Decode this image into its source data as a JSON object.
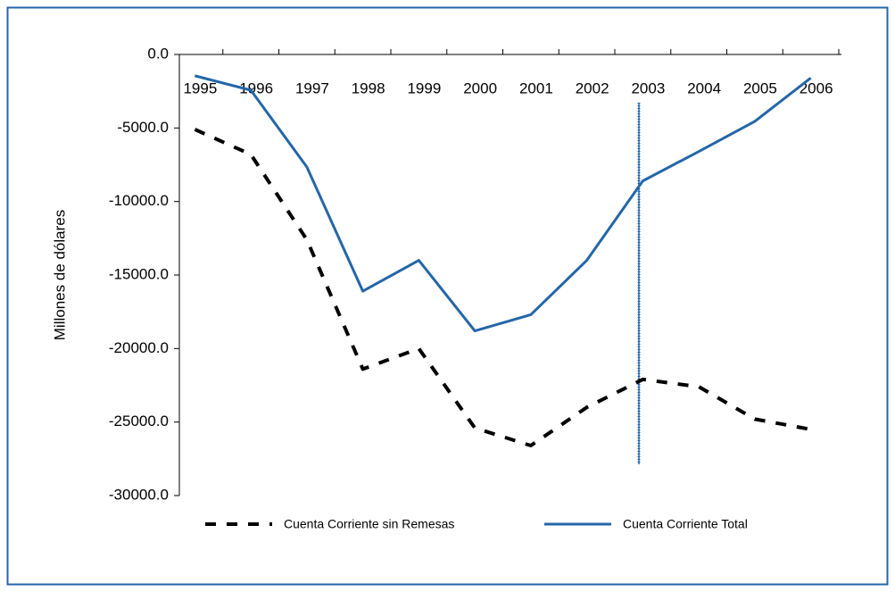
{
  "chart_data": {
    "type": "line",
    "y_label": "Millones de dólares",
    "categories": [
      "1995",
      "1996",
      "1997",
      "1998",
      "1999",
      "2000",
      "2001",
      "2002",
      "2003",
      "2004",
      "2005",
      "2006"
    ],
    "series": [
      {
        "name": "Cuenta Corriente sin Remesas",
        "color": "#000000",
        "dashed": true,
        "values": [
          -5100,
          -6800,
          -12600,
          -21400,
          -20000,
          -25400,
          -26600,
          -24000,
          -22100,
          -22600,
          -24800,
          -25500
        ]
      },
      {
        "name": "Cuenta Corriente Total",
        "color": "#2466a8",
        "dashed": false,
        "values": [
          -1450,
          -2430,
          -7650,
          -16100,
          -14000,
          -18800,
          -17700,
          -14000,
          -8600,
          -6600,
          -4550,
          -1600
        ]
      }
    ],
    "ylim": [
      -30000,
      0
    ],
    "yticks": [
      {
        "value": 0,
        "label": "0.0"
      },
      {
        "value": -5000,
        "label": "-5000.0"
      },
      {
        "value": -10000,
        "label": "-10000.0"
      },
      {
        "value": -15000,
        "label": "-15000.0"
      },
      {
        "value": -20000,
        "label": "-20000.0"
      },
      {
        "value": -25000,
        "label": "-25000.0"
      },
      {
        "value": -30000,
        "label": "-30000.0"
      }
    ]
  }
}
